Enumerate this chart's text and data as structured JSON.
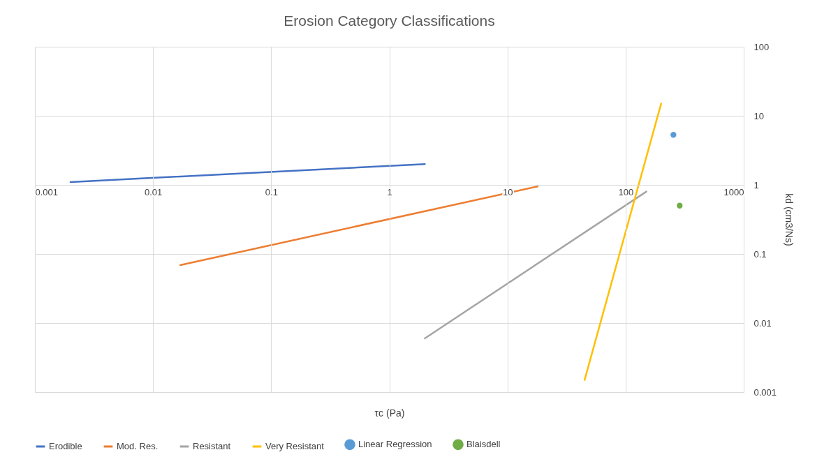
{
  "chart_data": {
    "type": "line",
    "title": "Erosion Category Classifications",
    "xlabel": "τc (Pa)",
    "ylabel": "kd (cm3/Ns)",
    "log": "xy",
    "xlim": [
      0.001,
      1000
    ],
    "ylim": [
      0.001,
      100
    ],
    "xticks": [
      0.001,
      0.01,
      0.1,
      1,
      10,
      100,
      1000
    ],
    "yticks": [
      0.001,
      0.01,
      0.1,
      1,
      10,
      100
    ],
    "grid": true,
    "legend": "bottom",
    "series": [
      {
        "name": "Erodible",
        "type": "line",
        "color": "#4472c4",
        "x": [
          0.002,
          2
        ],
        "values": [
          1.1,
          2
        ]
      },
      {
        "name": "Mod. Res.",
        "type": "line",
        "color": "#ed7d31",
        "x": [
          0.017,
          18
        ],
        "values": [
          0.069,
          0.95
        ]
      },
      {
        "name": "Resistant",
        "type": "line",
        "color": "#a5a5a5",
        "x": [
          2,
          150
        ],
        "values": [
          0.006,
          0.8
        ]
      },
      {
        "name": "Very Resistant",
        "type": "line",
        "color": "#ffc000",
        "x": [
          45,
          200
        ],
        "values": [
          0.0015,
          15
        ]
      },
      {
        "name": "Linear Regression",
        "type": "scatter",
        "color": "#5b9bd5",
        "x": [
          254
        ],
        "values": [
          5.3
        ]
      },
      {
        "name": "Blaisdell",
        "type": "scatter",
        "color": "#70ad47",
        "x": [
          287
        ],
        "values": [
          0.5
        ]
      }
    ]
  }
}
